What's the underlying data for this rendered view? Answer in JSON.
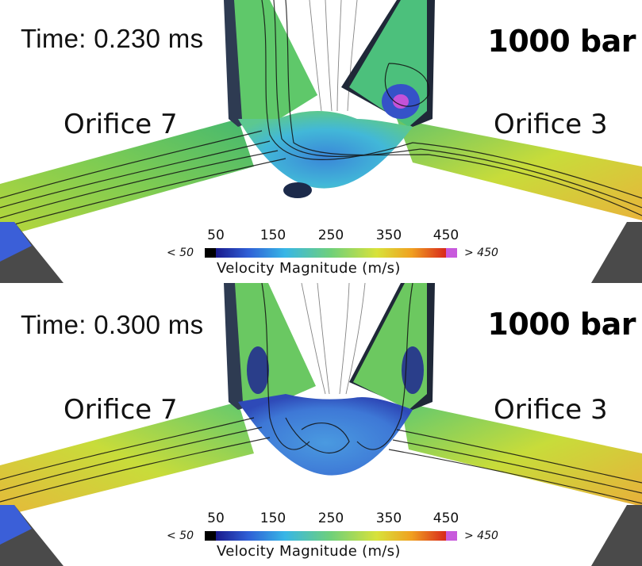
{
  "panels": [
    {
      "time_label": "Time: 0.230 ms",
      "pressure_label": "1000 bar",
      "left_orifice": "Orifice 7",
      "right_orifice": "Orifice 3"
    },
    {
      "time_label": "Time: 0.300 ms",
      "pressure_label": "1000 bar",
      "left_orifice": "Orifice 7",
      "right_orifice": "Orifice 3"
    }
  ],
  "colorbar": {
    "title": "Velocity Magnitude (m/s)",
    "ticks": [
      "50",
      "150",
      "250",
      "350",
      "450"
    ],
    "below_label": "< 50",
    "above_label": "> 450",
    "colors": [
      "#1a1a8c",
      "#2f5fd6",
      "#37b6e6",
      "#6fd07a",
      "#d8e23a",
      "#f0a020",
      "#d8281c",
      "#c85adc"
    ]
  }
}
